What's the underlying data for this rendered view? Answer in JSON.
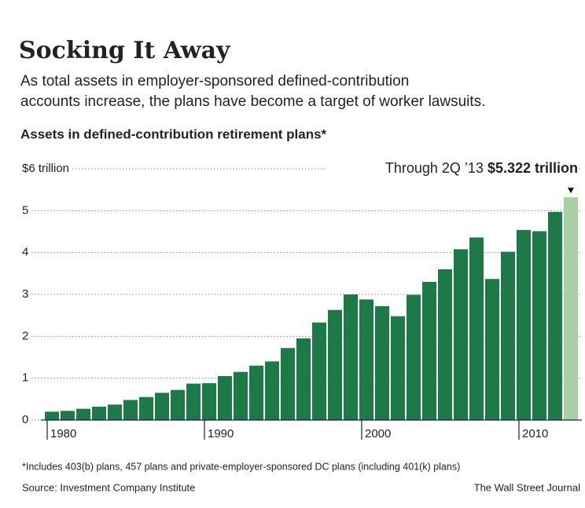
{
  "chart_data": {
    "type": "bar",
    "title": "Socking It Away",
    "subtitle": [
      "As total assets in employer-sponsored defined-contribution",
      "accounts increase, the plans have become a target of worker lawsuits."
    ],
    "y_label": "Assets in defined-contribution retirement plans*",
    "x": [
      1980,
      1981,
      1982,
      1983,
      1984,
      1985,
      1986,
      1987,
      1988,
      1989,
      1990,
      1991,
      1992,
      1993,
      1994,
      1995,
      1996,
      1997,
      1998,
      1999,
      2000,
      2001,
      2002,
      2003,
      2004,
      2005,
      2006,
      2007,
      2008,
      2009,
      2010,
      2011,
      2012,
      2013
    ],
    "values": [
      0.2,
      0.22,
      0.27,
      0.32,
      0.37,
      0.48,
      0.55,
      0.65,
      0.72,
      0.87,
      0.88,
      1.05,
      1.15,
      1.3,
      1.4,
      1.72,
      1.95,
      2.33,
      2.63,
      3.0,
      2.88,
      2.72,
      2.48,
      2.99,
      3.3,
      3.6,
      4.08,
      4.36,
      3.37,
      4.02,
      4.54,
      4.51,
      4.97,
      5.322
    ],
    "value_labels": [
      null,
      null,
      null,
      null,
      null,
      null,
      null,
      null,
      null,
      null,
      null,
      null,
      null,
      null,
      null,
      null,
      null,
      null,
      null,
      null,
      null,
      null,
      null,
      null,
      null,
      null,
      null,
      null,
      null,
      null,
      null,
      null,
      null,
      "$5.322 trillion"
    ],
    "annotation": "Through 2Q ’13",
    "color": "#1d7a48",
    "last_color": "#a9cfa3",
    "xlim": [
      1979.6,
      2014
    ],
    "xticks": [
      1980,
      1990,
      2000,
      2010
    ],
    "ylim": [
      0,
      6
    ],
    "yticks": [
      0,
      1,
      2,
      3,
      4,
      5,
      {
        "value": 6,
        "label": "$6 trillion"
      }
    ],
    "grid": true,
    "footnote": "*Includes 403(b) plans, 457 plans and private-employer-sponsored DC plans (including 401(k) plans)",
    "source": "Source: Investment Company Institute",
    "credit": "The Wall Street Journal"
  }
}
